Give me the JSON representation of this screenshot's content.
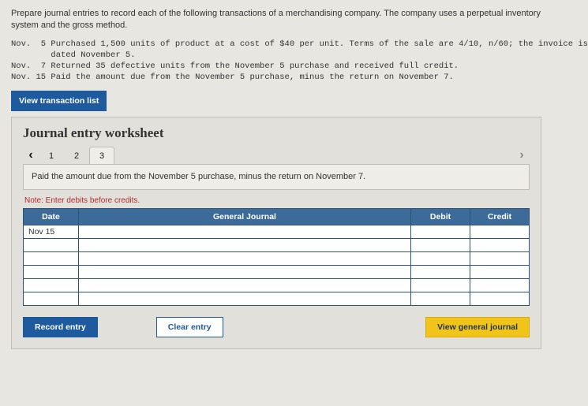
{
  "prompt": "Prepare journal entries to record each of the following transactions of a merchandising company. The company uses a perpetual inventory system and the gross method.",
  "transactions": {
    "line1": "Nov.  5 Purchased 1,500 units of product at a cost of $40 per unit. Terms of the sale are 4/10, n/60; the invoice is",
    "line2": "        dated November 5.",
    "line3": "Nov.  7 Returned 35 defective units from the November 5 purchase and received full credit.",
    "line4": "Nov. 15 Paid the amount due from the November 5 purchase, minus the return on November 7."
  },
  "view_tx_label": "View transaction list",
  "panel_title": "Journal entry worksheet",
  "tabs": {
    "t1": "1",
    "t2": "2",
    "t3": "3"
  },
  "step_desc": "Paid the amount due from the November 5 purchase, minus the return on November 7.",
  "note": "Note: Enter debits before credits.",
  "headers": {
    "date": "Date",
    "gj": "General Journal",
    "debit": "Debit",
    "credit": "Credit"
  },
  "rows": {
    "r0_date": "Nov 15"
  },
  "buttons": {
    "record": "Record entry",
    "clear": "Clear entry",
    "vgj": "View general journal"
  },
  "colors": {
    "page_bg": "#e8e6e0",
    "panel_bg": "#e2e0da",
    "header_bg": "#3d6b99",
    "primary": "#1e5b9e",
    "accent": "#f0c419",
    "note_color": "#b02b2b"
  }
}
